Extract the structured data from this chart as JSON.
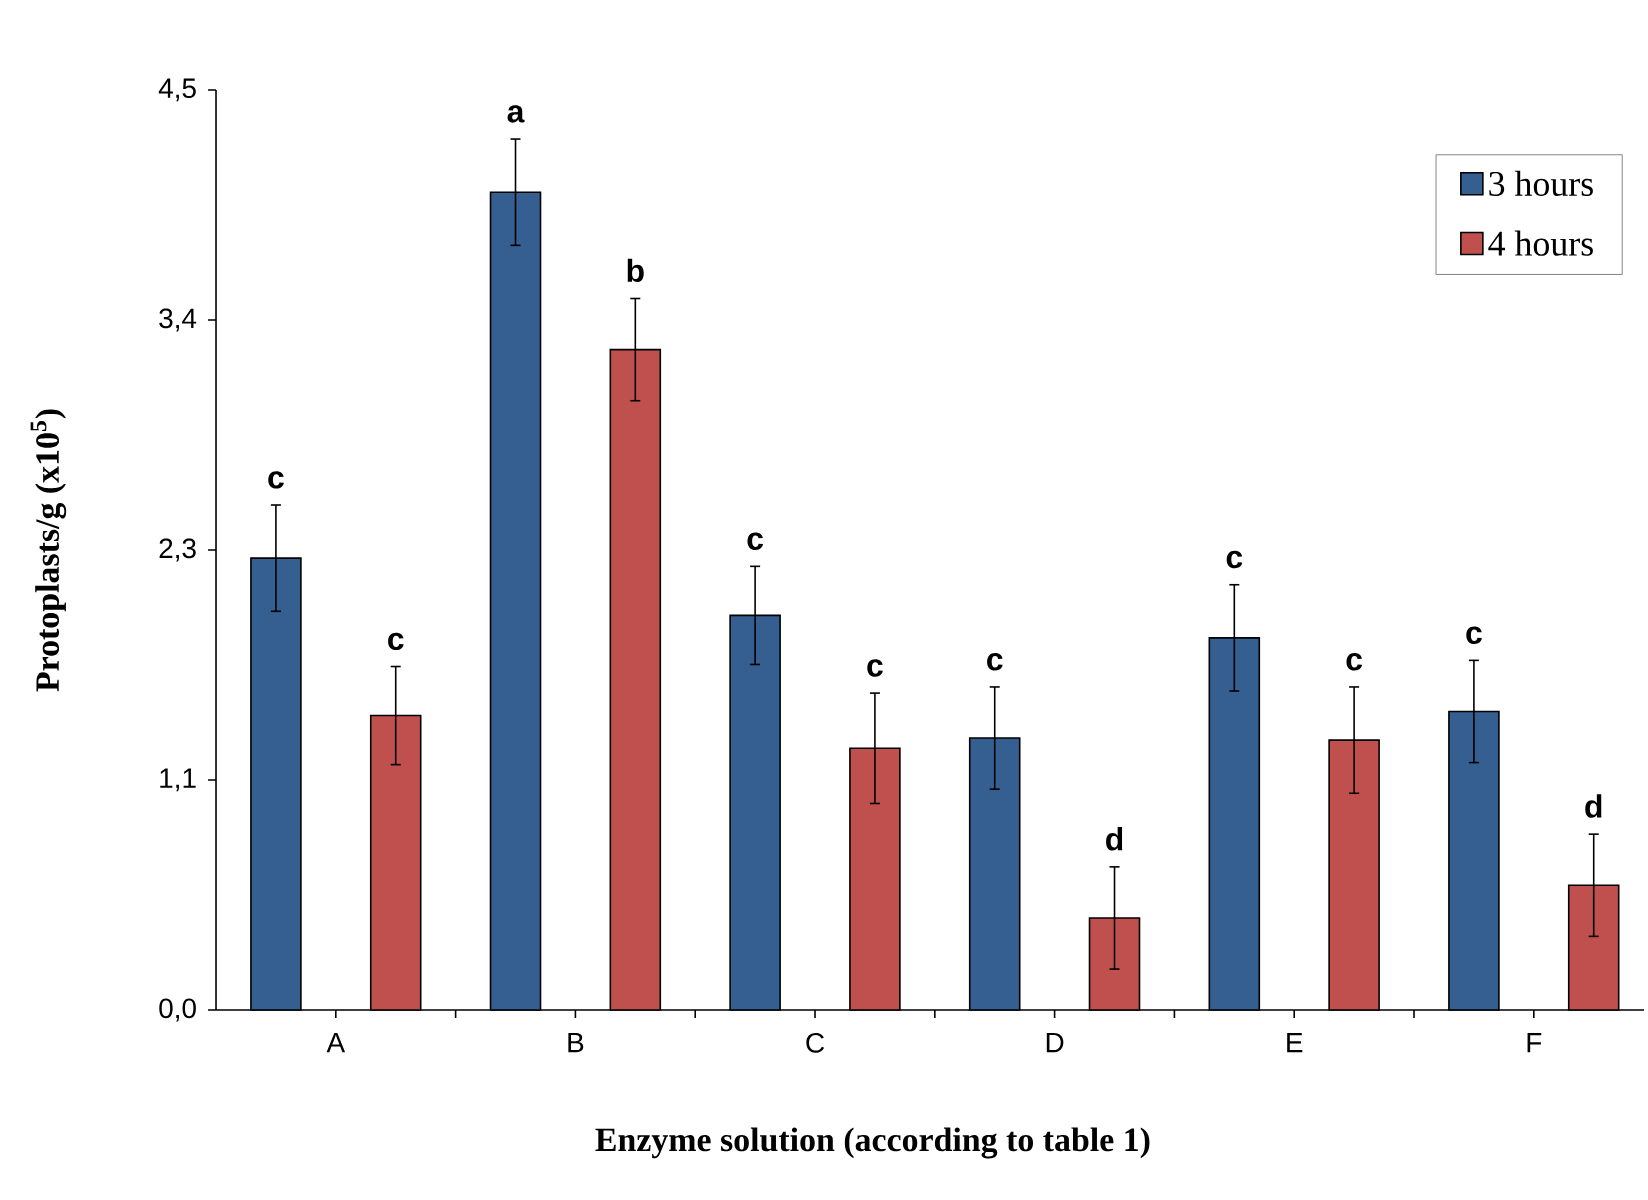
{
  "chart_data": {
    "type": "bar",
    "xlabel": "Enzyme solution (according to table 1)",
    "ylabel": "Protoplasts/g (x10$^{5}$)",
    "categories": [
      "A",
      "B",
      "C",
      "D",
      "E",
      "F"
    ],
    "series": [
      {
        "name": "3 hours",
        "color": "#365f91",
        "values": [
          2.21,
          4.0,
          1.93,
          1.33,
          1.82,
          1.46
        ],
        "errors": [
          0.26,
          0.26,
          0.24,
          0.25,
          0.26,
          0.25
        ]
      },
      {
        "name": "4 hours",
        "color": "#c0504d",
        "values": [
          1.44,
          3.23,
          1.28,
          0.45,
          1.32,
          0.61
        ],
        "errors": [
          0.24,
          0.25,
          0.27,
          0.25,
          0.26,
          0.25
        ]
      }
    ],
    "ylim": [
      0,
      4.5
    ],
    "yticks": [
      {
        "value": 0,
        "label": "0,0"
      },
      {
        "value": 1.125,
        "label": "1,1"
      },
      {
        "value": 2.25,
        "label": "2,3"
      },
      {
        "value": 3.375,
        "label": "3,4"
      },
      {
        "value": 4.5,
        "label": "4,5"
      }
    ],
    "annotations": [
      "c",
      "c",
      "a",
      "b",
      "c",
      "c",
      "c",
      "d",
      "c",
      "c",
      "c",
      "d"
    ],
    "legend": "top right",
    "grid": false
  }
}
